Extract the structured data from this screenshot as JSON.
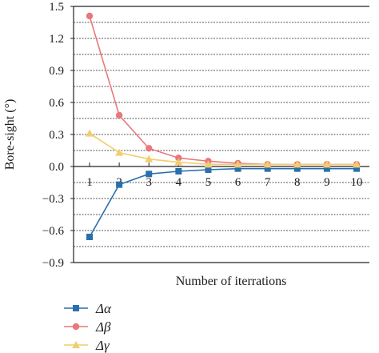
{
  "chart_data": {
    "type": "line",
    "xlabel": "Number of iterrations",
    "ylabel": "Bore-sight (°)",
    "x": [
      1,
      2,
      3,
      4,
      5,
      6,
      7,
      8,
      9,
      10
    ],
    "x_tick_labels": [
      "1",
      "2",
      "3",
      "4",
      "5",
      "6",
      "7",
      "8",
      "9",
      "10"
    ],
    "ylim": [
      -0.9,
      1.5
    ],
    "y_ticks": [
      1.5,
      1.2,
      0.9,
      0.6,
      0.3,
      0.0,
      -0.3,
      -0.6,
      -0.9
    ],
    "y_tick_labels": [
      "1.5",
      "1.2",
      "0.9",
      "0.6",
      "0.3",
      "0.0",
      "−0.3",
      "−0.6",
      "−0.9"
    ],
    "grid": "horizontal dashed",
    "legend_position": "bottom-left",
    "series": [
      {
        "name": "Δα",
        "marker": "square",
        "color": "#2a6fad",
        "values": [
          -0.66,
          -0.17,
          -0.07,
          -0.045,
          -0.03,
          -0.02,
          -0.02,
          -0.02,
          -0.02,
          -0.02
        ]
      },
      {
        "name": "Δβ",
        "marker": "circle",
        "color": "#e8787c",
        "values": [
          1.41,
          0.48,
          0.17,
          0.08,
          0.05,
          0.03,
          0.02,
          0.02,
          0.02,
          0.02
        ]
      },
      {
        "name": "Δγ",
        "marker": "triangle",
        "color": "#f2cd6f",
        "values": [
          0.31,
          0.13,
          0.07,
          0.04,
          0.02,
          0.02,
          0.02,
          0.02,
          0.02,
          0.02
        ]
      }
    ]
  }
}
